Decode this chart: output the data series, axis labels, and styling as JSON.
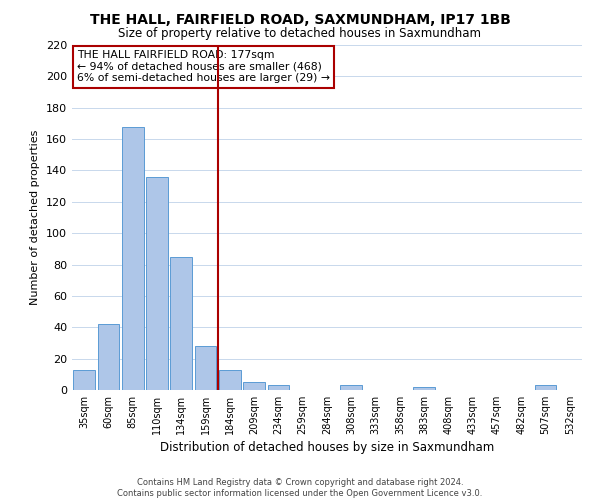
{
  "title": "THE HALL, FAIRFIELD ROAD, SAXMUNDHAM, IP17 1BB",
  "subtitle": "Size of property relative to detached houses in Saxmundham",
  "xlabel": "Distribution of detached houses by size in Saxmundham",
  "ylabel": "Number of detached properties",
  "bar_labels": [
    "35sqm",
    "60sqm",
    "85sqm",
    "110sqm",
    "134sqm",
    "159sqm",
    "184sqm",
    "209sqm",
    "234sqm",
    "259sqm",
    "284sqm",
    "308sqm",
    "333sqm",
    "358sqm",
    "383sqm",
    "408sqm",
    "433sqm",
    "457sqm",
    "482sqm",
    "507sqm",
    "532sqm"
  ],
  "bar_values": [
    13,
    42,
    168,
    136,
    85,
    28,
    13,
    5,
    3,
    0,
    0,
    3,
    0,
    0,
    2,
    0,
    0,
    0,
    0,
    3,
    0
  ],
  "bar_color": "#aec6e8",
  "bar_edgecolor": "#5b9bd5",
  "ylim": [
    0,
    220
  ],
  "yticks": [
    0,
    20,
    40,
    60,
    80,
    100,
    120,
    140,
    160,
    180,
    200,
    220
  ],
  "vline_color": "#aa0000",
  "annotation_title": "THE HALL FAIRFIELD ROAD: 177sqm",
  "annotation_line1": "← 94% of detached houses are smaller (468)",
  "annotation_line2": "6% of semi-detached houses are larger (29) →",
  "annotation_box_edgecolor": "#aa0000",
  "footer_line1": "Contains HM Land Registry data © Crown copyright and database right 2024.",
  "footer_line2": "Contains public sector information licensed under the Open Government Licence v3.0.",
  "background_color": "#ffffff",
  "grid_color": "#c8d8ec"
}
